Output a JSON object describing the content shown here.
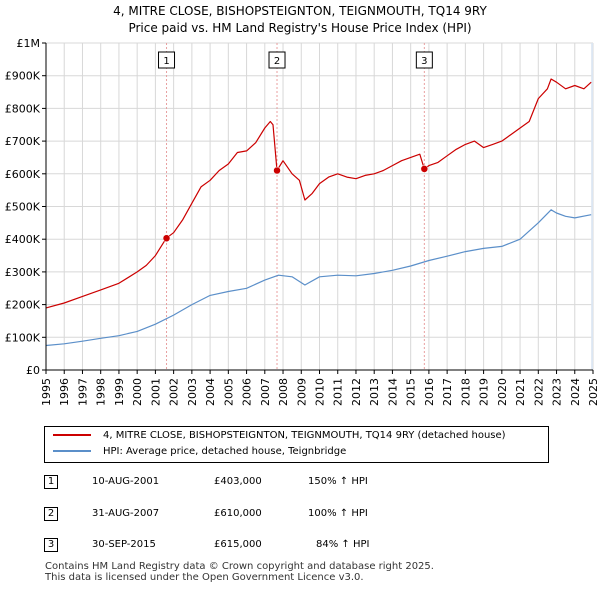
{
  "title_line1": "4, MITRE CLOSE, BISHOPSTEIGNTON, TEIGNMOUTH, TQ14 9RY",
  "title_line2": "Price paid vs. HM Land Registry's House Price Index (HPI)",
  "colors": {
    "property": "#cc0000",
    "hpi": "#5b8fc9",
    "sale_line": "#e8a0a0",
    "shade": "#dce6f2"
  },
  "chart_data": {
    "type": "line",
    "ylim": [
      0,
      1000000
    ],
    "xlim": [
      1995,
      2025
    ],
    "y_ticks": [
      0,
      100000,
      200000,
      300000,
      400000,
      500000,
      600000,
      700000,
      800000,
      900000,
      1000000
    ],
    "y_tick_labels": [
      "£0",
      "£100K",
      "£200K",
      "£300K",
      "£400K",
      "£500K",
      "£600K",
      "£700K",
      "£800K",
      "£900K",
      "£1M"
    ],
    "x_ticks": [
      1995,
      1996,
      1997,
      1998,
      1999,
      2000,
      2001,
      2002,
      2003,
      2004,
      2005,
      2006,
      2007,
      2008,
      2009,
      2010,
      2011,
      2012,
      2013,
      2014,
      2015,
      2016,
      2017,
      2018,
      2019,
      2020,
      2021,
      2022,
      2023,
      2024,
      2025
    ],
    "x_tick_labels": [
      "1995",
      "1996",
      "1997",
      "1998",
      "1999",
      "2000",
      "2001",
      "2002",
      "2003",
      "2004",
      "2005",
      "2006",
      "2007",
      "2008",
      "2009",
      "2010",
      "2011",
      "2012",
      "2013",
      "2014",
      "2015",
      "2016",
      "2017",
      "2018",
      "2019",
      "2020",
      "2021",
      "2022",
      "2023",
      "2024",
      "2025"
    ],
    "grid": true,
    "series": [
      {
        "name": "4, MITRE CLOSE, BISHOPSTEIGNTON, TEIGNMOUTH, TQ14 9RY (detached house)",
        "x": [
          1995,
          1996,
          1997,
          1998,
          1999,
          2000,
          2000.5,
          2001,
          2001.6,
          2002,
          2002.5,
          2003,
          2003.5,
          2004,
          2004.5,
          2005,
          2005.5,
          2006,
          2006.5,
          2007,
          2007.3,
          2007.45,
          2007.67,
          2008,
          2008.5,
          2008.9,
          2009.2,
          2009.6,
          2010,
          2010.5,
          2011,
          2011.5,
          2012,
          2012.5,
          2013,
          2013.5,
          2014,
          2014.5,
          2015,
          2015.5,
          2015.75,
          2016,
          2016.5,
          2017,
          2017.5,
          2018,
          2018.5,
          2019,
          2019.5,
          2020,
          2020.5,
          2021,
          2021.5,
          2022,
          2022.5,
          2022.7,
          2023,
          2023.5,
          2024,
          2024.5,
          2024.9
        ],
        "values": [
          190000,
          205000,
          225000,
          245000,
          265000,
          300000,
          320000,
          350000,
          403000,
          420000,
          460000,
          510000,
          560000,
          580000,
          610000,
          630000,
          665000,
          670000,
          695000,
          740000,
          760000,
          750000,
          610000,
          640000,
          600000,
          580000,
          520000,
          540000,
          570000,
          590000,
          600000,
          590000,
          585000,
          595000,
          600000,
          610000,
          625000,
          640000,
          650000,
          660000,
          615000,
          625000,
          635000,
          655000,
          675000,
          690000,
          700000,
          680000,
          690000,
          700000,
          720000,
          740000,
          760000,
          830000,
          860000,
          890000,
          880000,
          860000,
          870000,
          860000,
          880000
        ]
      },
      {
        "name": "HPI: Average price, detached house, Teignbridge",
        "x": [
          1995,
          1996,
          1997,
          1998,
          1999,
          2000,
          2001,
          2002,
          2003,
          2004,
          2005,
          2006,
          2007,
          2007.75,
          2008.5,
          2009.2,
          2010,
          2011,
          2012,
          2013,
          2014,
          2015,
          2016,
          2017,
          2018,
          2019,
          2020,
          2021,
          2022,
          2022.7,
          2023,
          2023.5,
          2024,
          2024.9
        ],
        "values": [
          75000,
          80000,
          88000,
          97000,
          105000,
          118000,
          140000,
          168000,
          200000,
          228000,
          240000,
          250000,
          275000,
          290000,
          285000,
          260000,
          285000,
          290000,
          288000,
          295000,
          305000,
          318000,
          335000,
          348000,
          362000,
          372000,
          378000,
          400000,
          450000,
          490000,
          480000,
          470000,
          465000,
          475000
        ]
      }
    ],
    "sales": [
      {
        "label": "1",
        "x": 2001.61,
        "value": 403000
      },
      {
        "label": "2",
        "x": 2007.67,
        "value": 610000
      },
      {
        "label": "3",
        "x": 2015.75,
        "value": 615000
      }
    ]
  },
  "legend": {
    "property": "4, MITRE CLOSE, BISHOPSTEIGNTON, TEIGNMOUTH, TQ14 9RY (detached house)",
    "hpi": "HPI: Average price, detached house, Teignbridge"
  },
  "transactions": [
    {
      "num": "1",
      "date": "10-AUG-2001",
      "price": "£403,000",
      "hpi": "150% ↑ HPI"
    },
    {
      "num": "2",
      "date": "31-AUG-2007",
      "price": "£610,000",
      "hpi": "100% ↑ HPI"
    },
    {
      "num": "3",
      "date": "30-SEP-2015",
      "price": "£615,000",
      "hpi": "84% ↑ HPI"
    }
  ],
  "footer_line1": "Contains HM Land Registry data © Crown copyright and database right 2025.",
  "footer_line2": "This data is licensed under the Open Government Licence v3.0."
}
